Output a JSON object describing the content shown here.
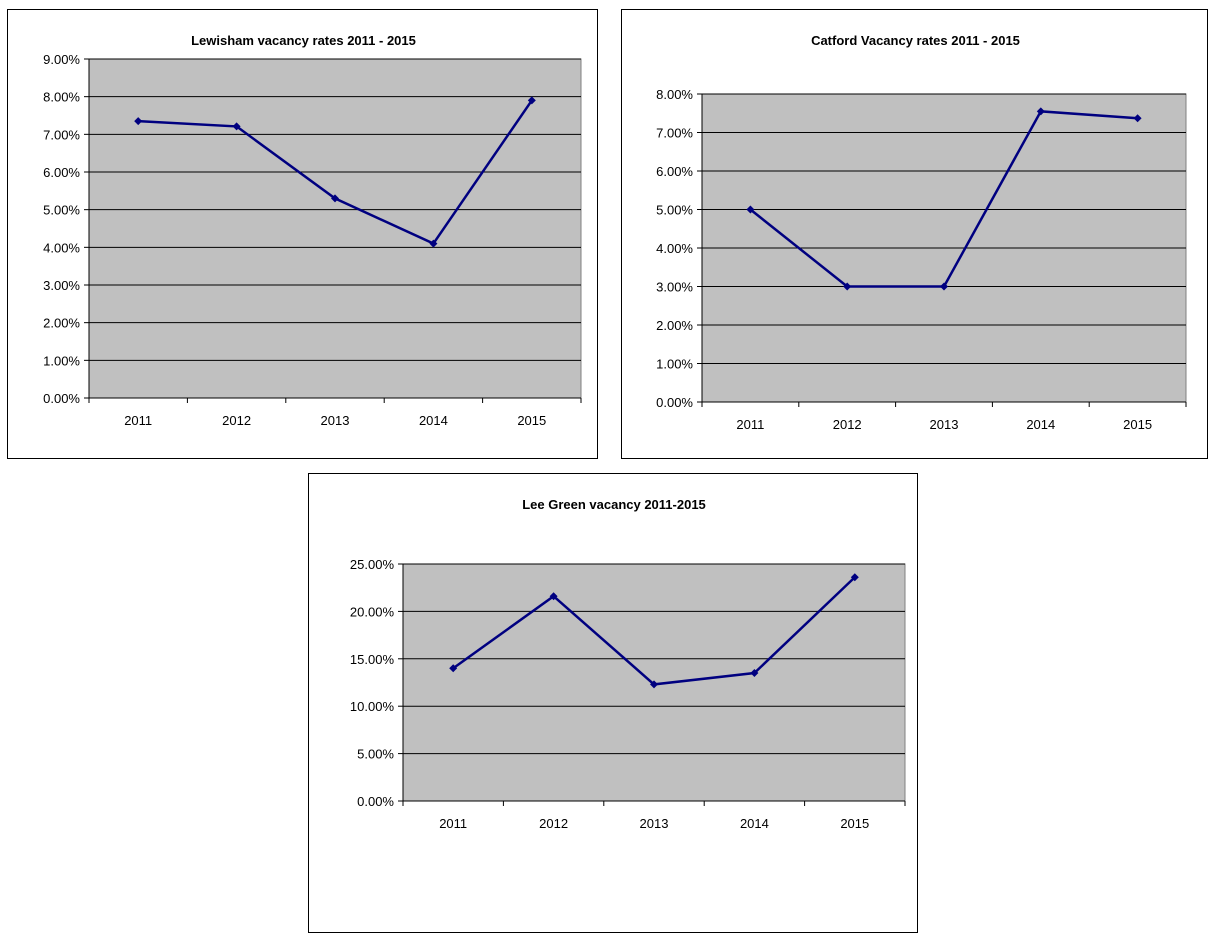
{
  "chart_data": [
    {
      "type": "line",
      "title": "Lewisham vacancy rates 2011 - 2015",
      "categories": [
        "2011",
        "2012",
        "2013",
        "2014",
        "2015"
      ],
      "values": [
        0.0735,
        0.0721,
        0.053,
        0.041,
        0.079
      ],
      "yticks": [
        "0.00%",
        "1.00%",
        "2.00%",
        "3.00%",
        "4.00%",
        "5.00%",
        "6.00%",
        "7.00%",
        "8.00%",
        "9.00%"
      ],
      "ylim": [
        0,
        0.09
      ],
      "grid": true,
      "line_color": "#000080",
      "plot_background": "#c0c0c0"
    },
    {
      "type": "line",
      "title": "Catford Vacancy rates 2011 - 2015",
      "categories": [
        "2011",
        "2012",
        "2013",
        "2014",
        "2015"
      ],
      "values": [
        0.05,
        0.03,
        0.03,
        0.0755,
        0.0737
      ],
      "yticks": [
        "0.00%",
        "1.00%",
        "2.00%",
        "3.00%",
        "4.00%",
        "5.00%",
        "6.00%",
        "7.00%",
        "8.00%"
      ],
      "ylim": [
        0,
        0.08
      ],
      "grid": true,
      "line_color": "#000080",
      "plot_background": "#c0c0c0"
    },
    {
      "type": "line",
      "title": "Lee Green vacancy 2011-2015",
      "categories": [
        "2011",
        "2012",
        "2013",
        "2014",
        "2015"
      ],
      "values": [
        0.14,
        0.216,
        0.123,
        0.135,
        0.236
      ],
      "yticks": [
        "0.00%",
        "5.00%",
        "10.00%",
        "15.00%",
        "20.00%",
        "25.00%"
      ],
      "ylim": [
        0,
        0.25
      ],
      "grid": true,
      "line_color": "#000080",
      "plot_background": "#c0c0c0"
    }
  ]
}
